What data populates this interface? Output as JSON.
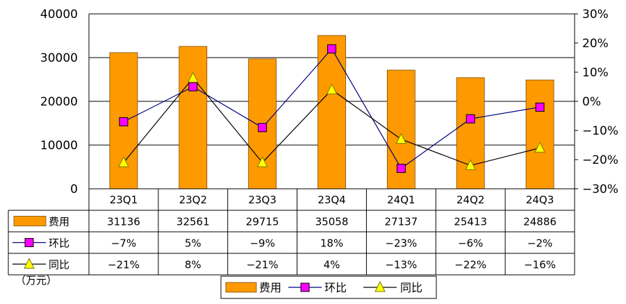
{
  "chart_data": {
    "type": "bar",
    "categories": [
      "23Q1",
      "23Q2",
      "23Q3",
      "23Q4",
      "24Q1",
      "24Q2",
      "24Q3"
    ],
    "series": [
      {
        "name": "费用",
        "type": "bar",
        "axis": "left",
        "values": [
          31136,
          32561,
          29715,
          35058,
          27137,
          25413,
          24886
        ],
        "labels": [
          "31136",
          "32561",
          "29715",
          "35058",
          "27137",
          "25413",
          "24886"
        ],
        "color": "#FF9900"
      },
      {
        "name": "环比",
        "type": "line",
        "axis": "right",
        "marker": "square",
        "values": [
          -7,
          5,
          -9,
          18,
          -23,
          -6,
          -2
        ],
        "labels": [
          "−7%",
          "5%",
          "−9%",
          "18%",
          "−23%",
          "−6%",
          "−2%"
        ],
        "color": "#FF00FF",
        "line_color": "#000080"
      },
      {
        "name": "同比",
        "type": "line",
        "axis": "right",
        "marker": "triangle",
        "values": [
          -21,
          8,
          -21,
          4,
          -13,
          -22,
          -16
        ],
        "labels": [
          "−21%",
          "8%",
          "−21%",
          "4%",
          "−13%",
          "−22%",
          "−16%"
        ],
        "color": "#FFFF00",
        "line_color": "#000000"
      }
    ],
    "left_axis": {
      "ylim": [
        0,
        40000
      ],
      "ticks": [
        "0",
        "10000",
        "20000",
        "30000",
        "40000"
      ]
    },
    "right_axis": {
      "ylim": [
        -30,
        30
      ],
      "ticks": [
        "−30%",
        "−20%",
        "−10%",
        "0%",
        "10%",
        "20%",
        "30%"
      ]
    },
    "unit_label": "（万元）",
    "grid": true,
    "legend_placement": "bottom",
    "data_table": true
  }
}
